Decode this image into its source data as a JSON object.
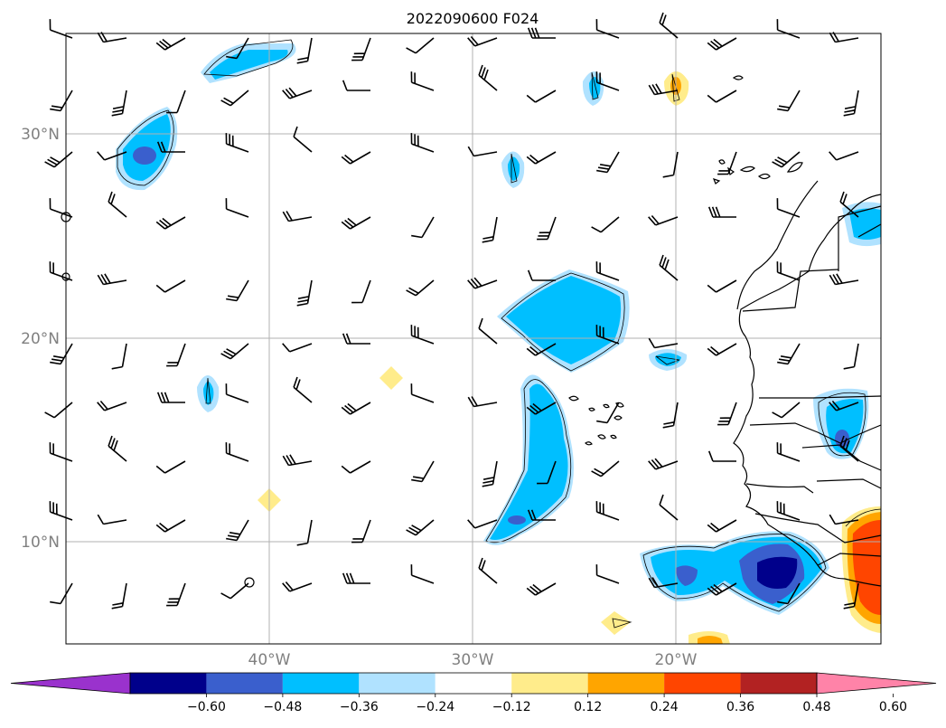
{
  "title": "2022090600 F024",
  "latitude_labels": [
    "30°N",
    "20°N",
    "10°N"
  ],
  "longitude_labels": [
    "40°W",
    "30°W",
    "20°W"
  ],
  "colorbar": {
    "tick_labels": [
      "−0.60",
      "−0.48",
      "−0.36",
      "−0.24",
      "−0.12",
      "0.12",
      "0.24",
      "0.36",
      "0.48",
      "0.60"
    ],
    "colors": [
      "#9a32cd",
      "#00008b",
      "#3a5fcd",
      "#00bfff",
      "#b0e2ff",
      "#ffffff",
      "#ffec8b",
      "#ffa500",
      "#ff4500",
      "#b22222",
      "#ff83a8"
    ]
  },
  "map_extent": {
    "lon_min": -50,
    "lon_max": -10,
    "lat_min": 5,
    "lat_max": 35
  },
  "colors": {
    "coastline": "#000000",
    "gridline": "#b0b0b0",
    "wind_barb": "#000000"
  }
}
